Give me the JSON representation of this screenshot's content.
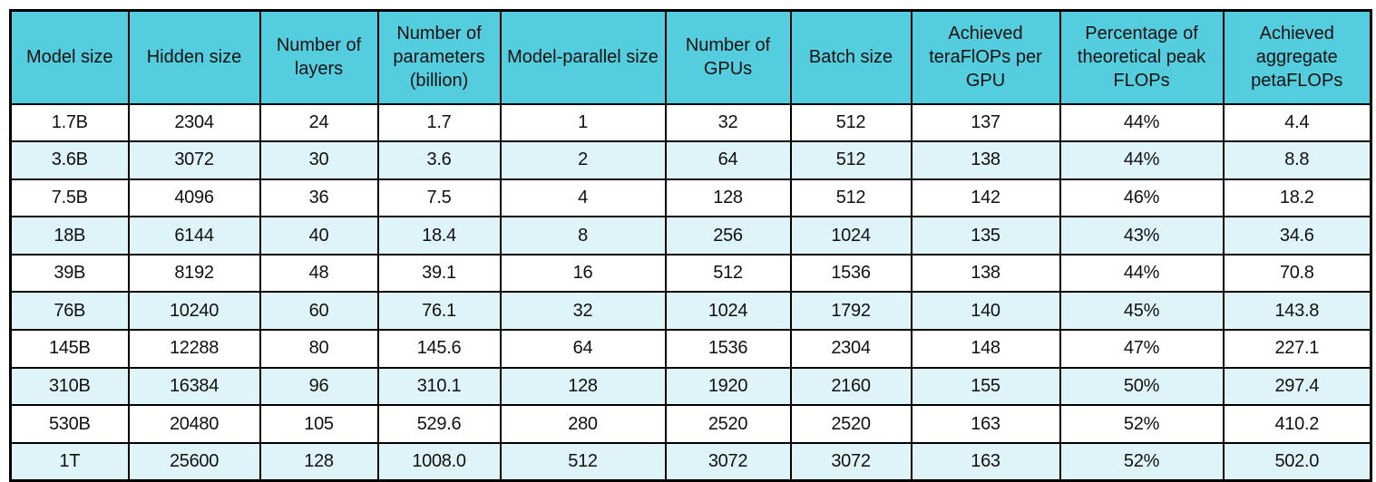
{
  "chart_data": {
    "type": "table",
    "columns": [
      "Model size",
      "Hidden size",
      "Number of layers",
      "Number of parameters (billion)",
      "Model-parallel size",
      "Number of GPUs",
      "Batch size",
      "Achieved teraFlOPs per GPU",
      "Percentage of theoretical peak FLOPs",
      "Achieved aggregate petaFLOPs"
    ],
    "rows": [
      [
        "1.7B",
        "2304",
        "24",
        "1.7",
        "1",
        "32",
        "512",
        "137",
        "44%",
        "4.4"
      ],
      [
        "3.6B",
        "3072",
        "30",
        "3.6",
        "2",
        "64",
        "512",
        "138",
        "44%",
        "8.8"
      ],
      [
        "7.5B",
        "4096",
        "36",
        "7.5",
        "4",
        "128",
        "512",
        "142",
        "46%",
        "18.2"
      ],
      [
        "18B",
        "6144",
        "40",
        "18.4",
        "8",
        "256",
        "1024",
        "135",
        "43%",
        "34.6"
      ],
      [
        "39B",
        "8192",
        "48",
        "39.1",
        "16",
        "512",
        "1536",
        "138",
        "44%",
        "70.8"
      ],
      [
        "76B",
        "10240",
        "60",
        "76.1",
        "32",
        "1024",
        "1792",
        "140",
        "45%",
        "143.8"
      ],
      [
        "145B",
        "12288",
        "80",
        "145.6",
        "64",
        "1536",
        "2304",
        "148",
        "47%",
        "227.1"
      ],
      [
        "310B",
        "16384",
        "96",
        "310.1",
        "128",
        "1920",
        "2160",
        "155",
        "50%",
        "297.4"
      ],
      [
        "530B",
        "20480",
        "105",
        "529.6",
        "280",
        "2520",
        "2520",
        "163",
        "52%",
        "410.2"
      ],
      [
        "1T",
        "25600",
        "128",
        "1008.0",
        "512",
        "3072",
        "3072",
        "163",
        "52%",
        "502.0"
      ]
    ],
    "colors": {
      "header_bg": "#54CEDE",
      "alt_row_bg": "#DFF4F8",
      "border": "#000000",
      "text": "#111111"
    },
    "layout": {
      "legend_position": "none",
      "grid": "on"
    }
  }
}
